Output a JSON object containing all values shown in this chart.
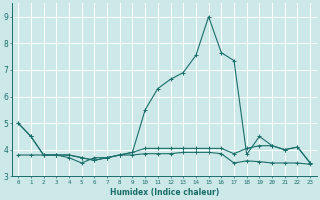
{
  "xlabel": "Humidex (Indice chaleur)",
  "background_color": "#cce8e8",
  "grid_color": "#ffffff",
  "line_color": "#1a6e6a",
  "xlim": [
    -0.5,
    23.5
  ],
  "ylim": [
    3,
    9.5
  ],
  "yticks": [
    3,
    4,
    5,
    6,
    7,
    8,
    9
  ],
  "xticks": [
    0,
    1,
    2,
    3,
    4,
    5,
    6,
    7,
    8,
    9,
    10,
    11,
    12,
    13,
    14,
    15,
    16,
    17,
    18,
    19,
    20,
    21,
    22,
    23
  ],
  "series1": [
    5.0,
    4.5,
    3.8,
    3.8,
    3.8,
    3.7,
    3.6,
    3.7,
    3.8,
    3.9,
    4.05,
    4.05,
    4.05,
    4.05,
    4.05,
    4.05,
    4.05,
    3.85,
    4.05,
    4.15,
    4.15,
    4.0,
    4.1,
    3.5
  ],
  "series2": [
    5.0,
    4.5,
    3.8,
    3.8,
    3.8,
    3.7,
    3.6,
    3.7,
    3.8,
    3.9,
    5.5,
    6.3,
    6.65,
    6.9,
    7.55,
    9.0,
    7.65,
    7.35,
    3.82,
    4.5,
    4.15,
    4.0,
    4.1,
    3.5
  ],
  "series3": [
    3.8,
    3.8,
    3.8,
    3.8,
    3.7,
    3.5,
    3.7,
    3.7,
    3.8,
    3.8,
    3.85,
    3.85,
    3.85,
    3.9,
    3.9,
    3.9,
    3.85,
    3.5,
    3.58,
    3.55,
    3.5,
    3.5,
    3.5,
    3.45
  ]
}
